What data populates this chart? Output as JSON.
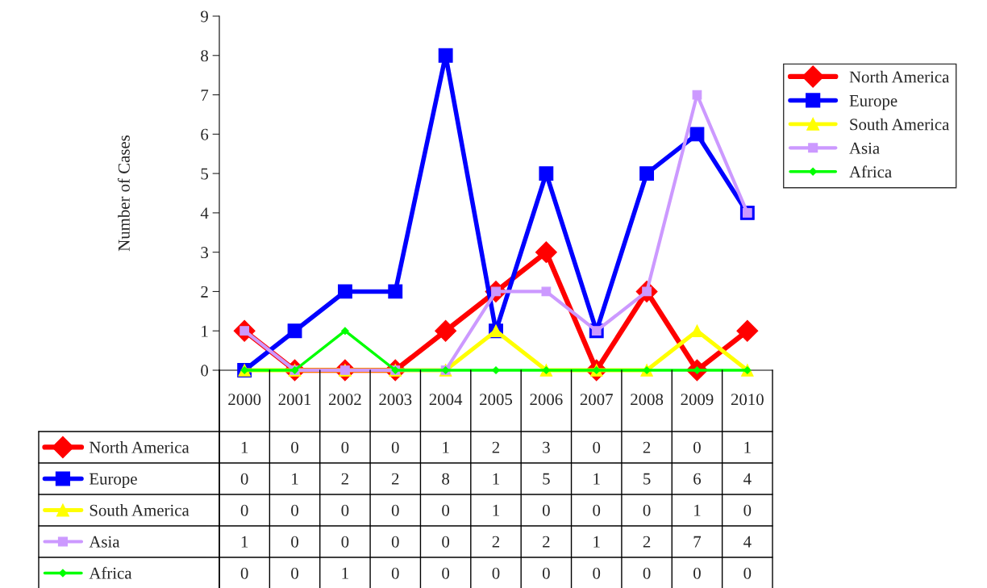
{
  "chart_data": {
    "type": "line",
    "ylabel": "Number of Cases",
    "categories": [
      "2000",
      "2001",
      "2002",
      "2003",
      "2004",
      "2005",
      "2006",
      "2007",
      "2008",
      "2009",
      "2010"
    ],
    "series": [
      {
        "name": "North America",
        "color": "#ff0000",
        "marker": "diamond",
        "values": [
          1,
          0,
          0,
          0,
          1,
          2,
          3,
          0,
          2,
          0,
          1
        ]
      },
      {
        "name": "Europe",
        "color": "#0000ff",
        "marker": "square",
        "values": [
          0,
          1,
          2,
          2,
          8,
          1,
          5,
          1,
          5,
          6,
          4
        ]
      },
      {
        "name": "South America",
        "color": "#ffff00",
        "marker": "triangle",
        "values": [
          0,
          0,
          0,
          0,
          0,
          1,
          0,
          0,
          0,
          1,
          0
        ]
      },
      {
        "name": "Asia",
        "color": "#cc99ff",
        "marker": "square",
        "values": [
          1,
          0,
          0,
          0,
          0,
          2,
          2,
          1,
          2,
          7,
          4
        ]
      },
      {
        "name": "Africa",
        "color": "#00ff00",
        "marker": "diamond",
        "values": [
          0,
          0,
          1,
          0,
          0,
          0,
          0,
          0,
          0,
          0,
          0
        ]
      }
    ],
    "ylim": [
      0,
      9
    ],
    "yticks": [
      0,
      1,
      2,
      3,
      4,
      5,
      6,
      7,
      8,
      9
    ],
    "grid": false,
    "legend": "right",
    "data_labels": true,
    "line_style": "solid"
  }
}
